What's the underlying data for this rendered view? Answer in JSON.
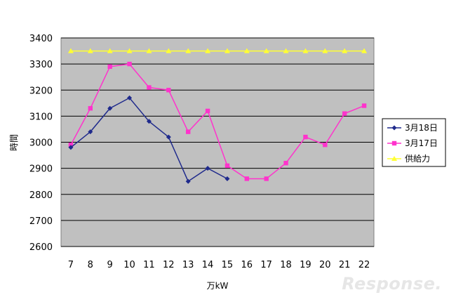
{
  "chart_data": {
    "type": "line",
    "ylabel": "時間",
    "xlabel": "万kW",
    "x": [
      7,
      8,
      9,
      10,
      11,
      12,
      13,
      14,
      15,
      16,
      17,
      18,
      19,
      20,
      21,
      22
    ],
    "ylim": [
      2600,
      3400
    ],
    "yticks": [
      2600,
      2700,
      2800,
      2900,
      3000,
      3100,
      3200,
      3300,
      3400
    ],
    "grid": true,
    "legend_position": "right",
    "plot_background": "#c0c0c0",
    "series": [
      {
        "name": "3月18日",
        "color": "#1f2a8c",
        "marker": "diamond",
        "values": [
          2980,
          3040,
          3130,
          3170,
          3080,
          3020,
          2850,
          2900,
          2860,
          null,
          null,
          null,
          null,
          null,
          null,
          null
        ]
      },
      {
        "name": "3月17日",
        "color": "#ff33cc",
        "marker": "square",
        "values": [
          2990,
          3130,
          3290,
          3300,
          3210,
          3200,
          3040,
          3120,
          2910,
          2860,
          2860,
          2920,
          3020,
          2990,
          3110,
          3140
        ]
      },
      {
        "name": "供給力",
        "color": "#ffff33",
        "marker": "triangle",
        "values": [
          3350,
          3350,
          3350,
          3350,
          3350,
          3350,
          3350,
          3350,
          3350,
          3350,
          3350,
          3350,
          3350,
          3350,
          3350,
          3350
        ]
      }
    ]
  },
  "watermark": "Response."
}
